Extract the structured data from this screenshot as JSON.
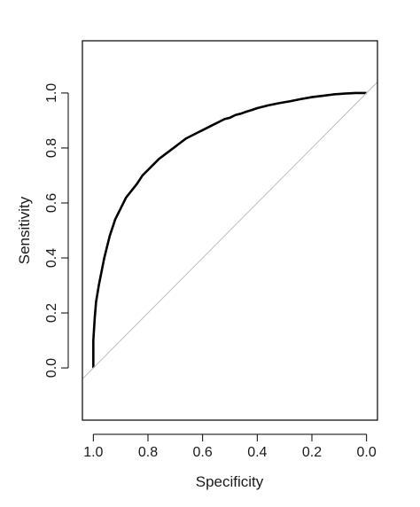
{
  "chart_data": {
    "type": "line",
    "title": "",
    "xlabel": "Specificity",
    "ylabel": "Sensitivity",
    "x_reversed": true,
    "xlim": [
      1.04,
      -0.04
    ],
    "ylim": [
      -0.19,
      1.19
    ],
    "xticks": [
      1.0,
      0.8,
      0.6,
      0.4,
      0.2,
      0.0
    ],
    "yticks": [
      0.0,
      0.2,
      0.4,
      0.6,
      0.8,
      1.0
    ],
    "xtick_labels": [
      "1.0",
      "0.8",
      "0.6",
      "0.4",
      "0.2",
      "0.0"
    ],
    "ytick_labels": [
      "0.0",
      "0.2",
      "0.4",
      "0.6",
      "0.8",
      "1.0"
    ],
    "grid": false,
    "series": [
      {
        "kind": "roc-curve",
        "color": "#000000",
        "x": [
          1.0,
          1.0,
          0.995,
          0.99,
          0.98,
          0.97,
          0.96,
          0.95,
          0.94,
          0.93,
          0.92,
          0.9,
          0.88,
          0.86,
          0.84,
          0.82,
          0.8,
          0.78,
          0.76,
          0.74,
          0.72,
          0.7,
          0.68,
          0.66,
          0.64,
          0.62,
          0.6,
          0.58,
          0.56,
          0.54,
          0.52,
          0.5,
          0.48,
          0.46,
          0.44,
          0.42,
          0.4,
          0.36,
          0.32,
          0.28,
          0.24,
          0.2,
          0.16,
          0.12,
          0.08,
          0.04,
          0.0
        ],
        "y": [
          0.0,
          0.1,
          0.18,
          0.24,
          0.3,
          0.35,
          0.4,
          0.44,
          0.48,
          0.51,
          0.54,
          0.58,
          0.62,
          0.645,
          0.67,
          0.7,
          0.72,
          0.74,
          0.76,
          0.775,
          0.79,
          0.805,
          0.82,
          0.835,
          0.845,
          0.855,
          0.865,
          0.875,
          0.885,
          0.895,
          0.905,
          0.91,
          0.92,
          0.925,
          0.932,
          0.938,
          0.945,
          0.955,
          0.963,
          0.97,
          0.978,
          0.985,
          0.99,
          0.995,
          0.998,
          1.0,
          1.0
        ]
      },
      {
        "kind": "reference-diagonal",
        "color": "#bdbdbd",
        "x": [
          1.04,
          -0.04
        ],
        "y": [
          -0.04,
          1.04
        ]
      }
    ]
  }
}
